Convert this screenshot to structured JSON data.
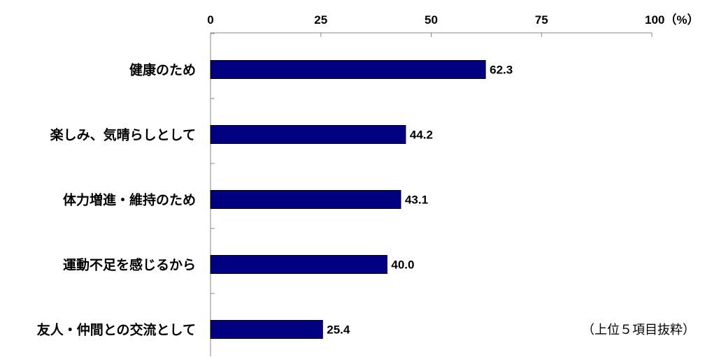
{
  "chart_data": {
    "type": "bar",
    "orientation": "horizontal",
    "categories": [
      "健康のため",
      "楽しみ、気晴らしとして",
      "体力増進・維持のため",
      "運動不足を感じるから",
      "友人・仲間との交流として"
    ],
    "values": [
      62.3,
      44.2,
      43.1,
      40.0,
      25.4
    ],
    "value_labels": [
      "62.3",
      "44.2",
      "43.1",
      "40.0",
      "25.4"
    ],
    "xlim": [
      0,
      100
    ],
    "xticks": [
      0,
      25,
      50,
      75,
      100
    ],
    "xtick_labels": [
      "0",
      "25",
      "50",
      "75",
      "100（%）"
    ],
    "x_axis_position": "top",
    "grid": false,
    "legend": "none",
    "bar_color": "#000080",
    "note": "（上位５項目抜粋）"
  }
}
